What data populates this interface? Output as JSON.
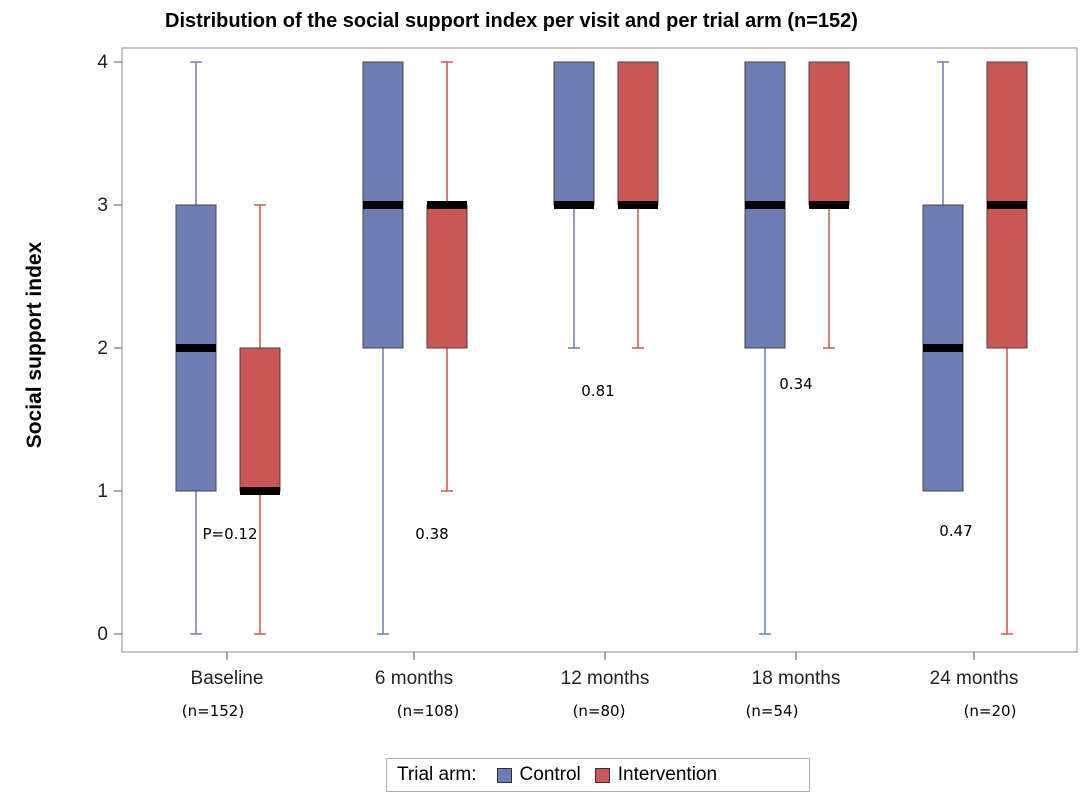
{
  "chart_data": {
    "type": "box",
    "title": "Distribution of the social support index per visit and per trial arm (n=152)",
    "ylabel": "Social support index",
    "xlabel": "",
    "ylim": [
      0,
      4
    ],
    "yticks": [
      "0",
      "1",
      "2",
      "3",
      "4"
    ],
    "categories": [
      "Baseline",
      "6 months",
      "12 months",
      "18 months",
      "24 months"
    ],
    "category_counts": [
      "(n=152)",
      "(n=108)",
      "(n=80)",
      "(n=54)",
      "(n=20)"
    ],
    "p_values": [
      "P=0.12",
      "0.38",
      "0.81",
      "0.34",
      "0.47"
    ],
    "legend": {
      "title": "Trial arm:",
      "position": "bottom-center"
    },
    "grid": false,
    "series": [
      {
        "name": "Control",
        "color": "#6b7db3",
        "boxes": [
          {
            "min": 0,
            "q1": 1,
            "median": 2,
            "q3": 3,
            "max": 4
          },
          {
            "min": 0,
            "q1": 2,
            "median": 3,
            "q3": 4,
            "max": 4
          },
          {
            "min": 2,
            "q1": 3,
            "median": 3,
            "q3": 4,
            "max": 4
          },
          {
            "min": 0,
            "q1": 2,
            "median": 3,
            "q3": 4,
            "max": 4
          },
          {
            "min": 1,
            "q1": 1,
            "median": 2,
            "q3": 3,
            "max": 4
          }
        ]
      },
      {
        "name": "Intervention",
        "color": "#cc5555",
        "boxes": [
          {
            "min": 0,
            "q1": 1,
            "median": 1,
            "q3": 2,
            "max": 3
          },
          {
            "min": 1,
            "q1": 2,
            "median": 3,
            "q3": 3,
            "max": 4
          },
          {
            "min": 2,
            "q1": 3,
            "median": 3,
            "q3": 4,
            "max": 4
          },
          {
            "min": 2,
            "q1": 3,
            "median": 3,
            "q3": 4,
            "max": 4
          },
          {
            "min": 0,
            "q1": 2,
            "median": 3,
            "q3": 4,
            "max": 4
          }
        ]
      }
    ]
  },
  "colors": {
    "control": "#6b7db3",
    "intervention": "#cc5555"
  }
}
